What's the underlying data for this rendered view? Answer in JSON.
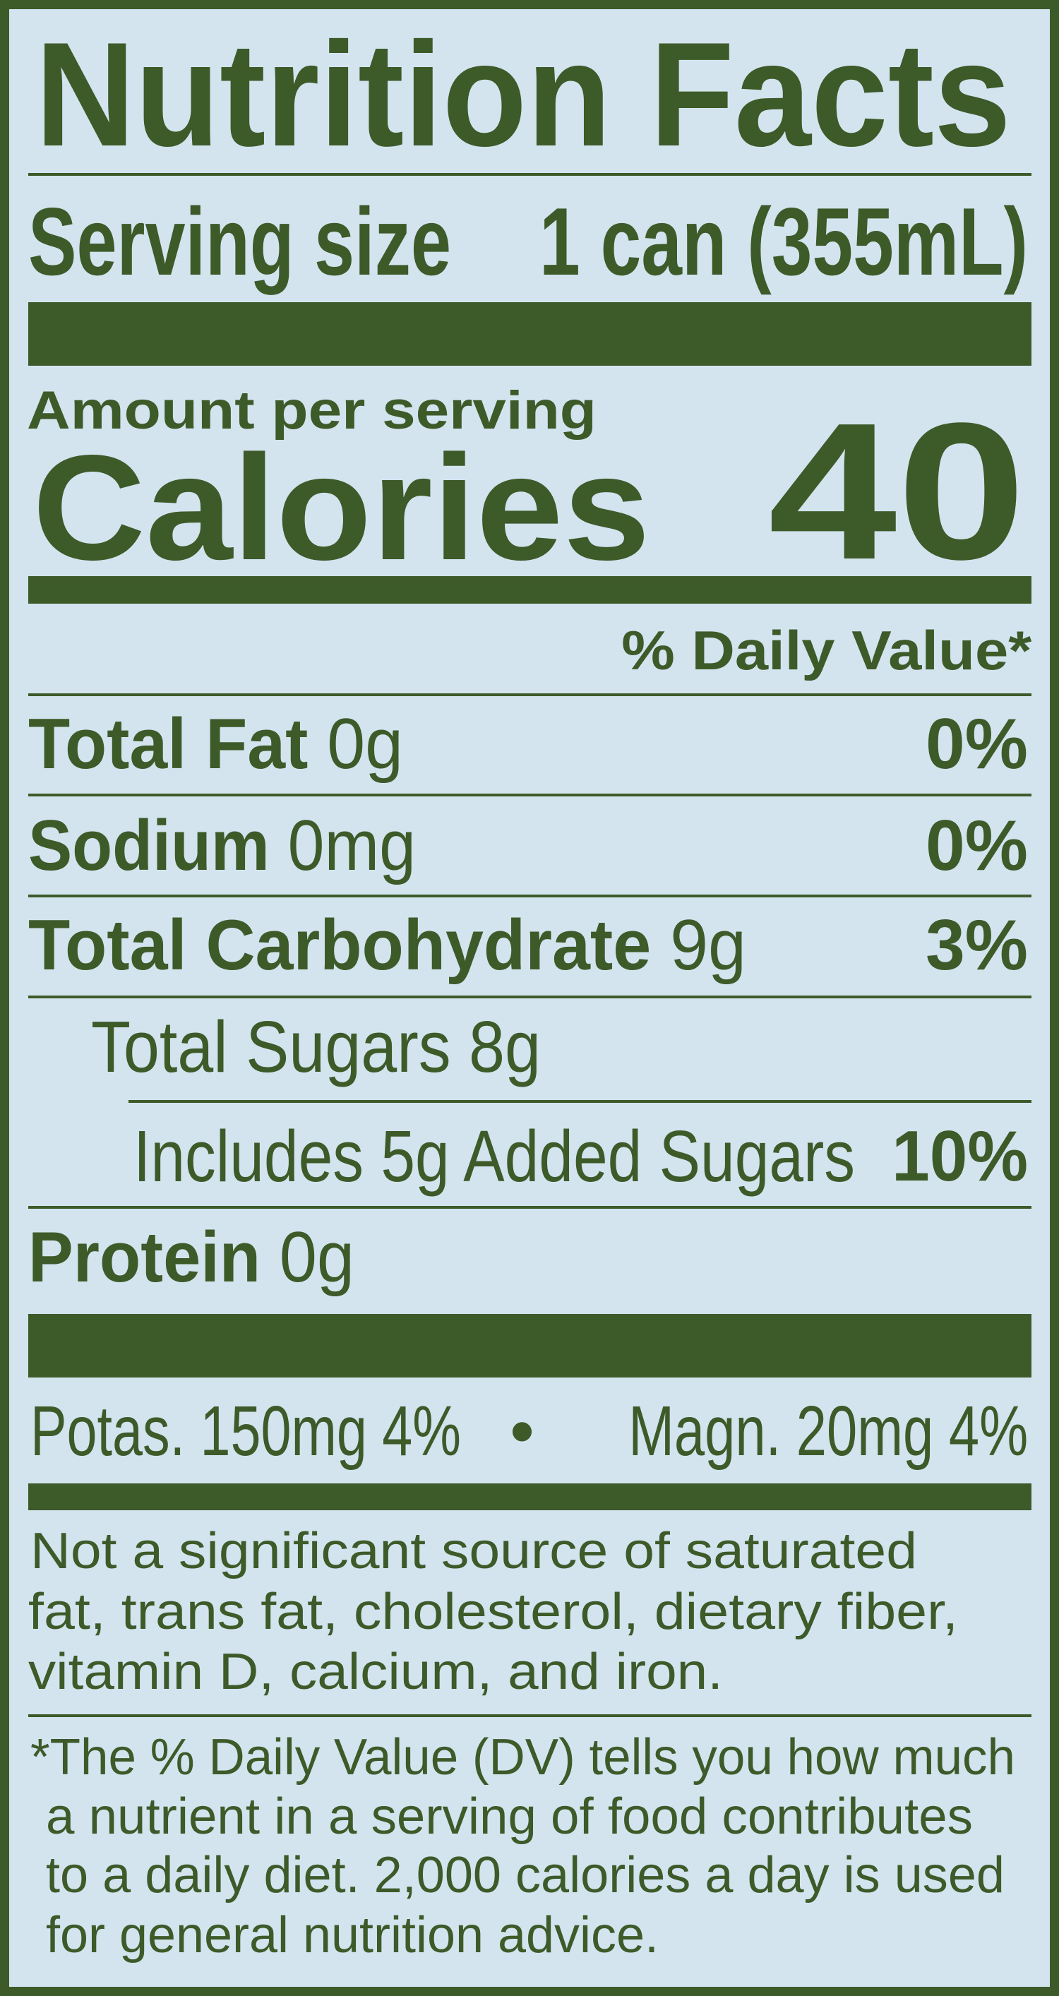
{
  "label": {
    "title": "Nutrition Facts",
    "serving_size_label": "Serving size",
    "serving_size_value": "1 can (355mL)",
    "amount_per_serving": "Amount per serving",
    "calories_label": "Calories",
    "calories_value": "40",
    "daily_value_header": "% Daily Value*",
    "nutrients": [
      {
        "name": "Total Fat",
        "amount": "0g",
        "dv": "0%"
      },
      {
        "name": "Sodium",
        "amount": "0mg",
        "dv": "0%"
      },
      {
        "name": "Total Carbohydrate",
        "amount": "9g",
        "dv": "3%"
      },
      {
        "name": "Total Sugars 8g"
      },
      {
        "name": "Includes 5g Added Sugars",
        "dv": "10%"
      },
      {
        "name": "Protein",
        "amount": "0g"
      }
    ],
    "minerals": {
      "left": "Potas. 150mg 4%",
      "separator": "•",
      "right": "Magn. 20mg 4%"
    },
    "not_significant": [
      "Not a significant source of saturated",
      "fat, trans fat, cholesterol, dietary fiber,",
      "vitamin D, calcium, and iron."
    ],
    "footnote": [
      "*The % Daily Value (DV) tells you how much",
      "a nutrient in a serving of food contributes",
      "to a daily diet. 2,000 calories a day is used",
      "for general nutrition advice."
    ]
  },
  "colors": {
    "ink": "#3d5a29",
    "background": "#d3e4ef"
  }
}
